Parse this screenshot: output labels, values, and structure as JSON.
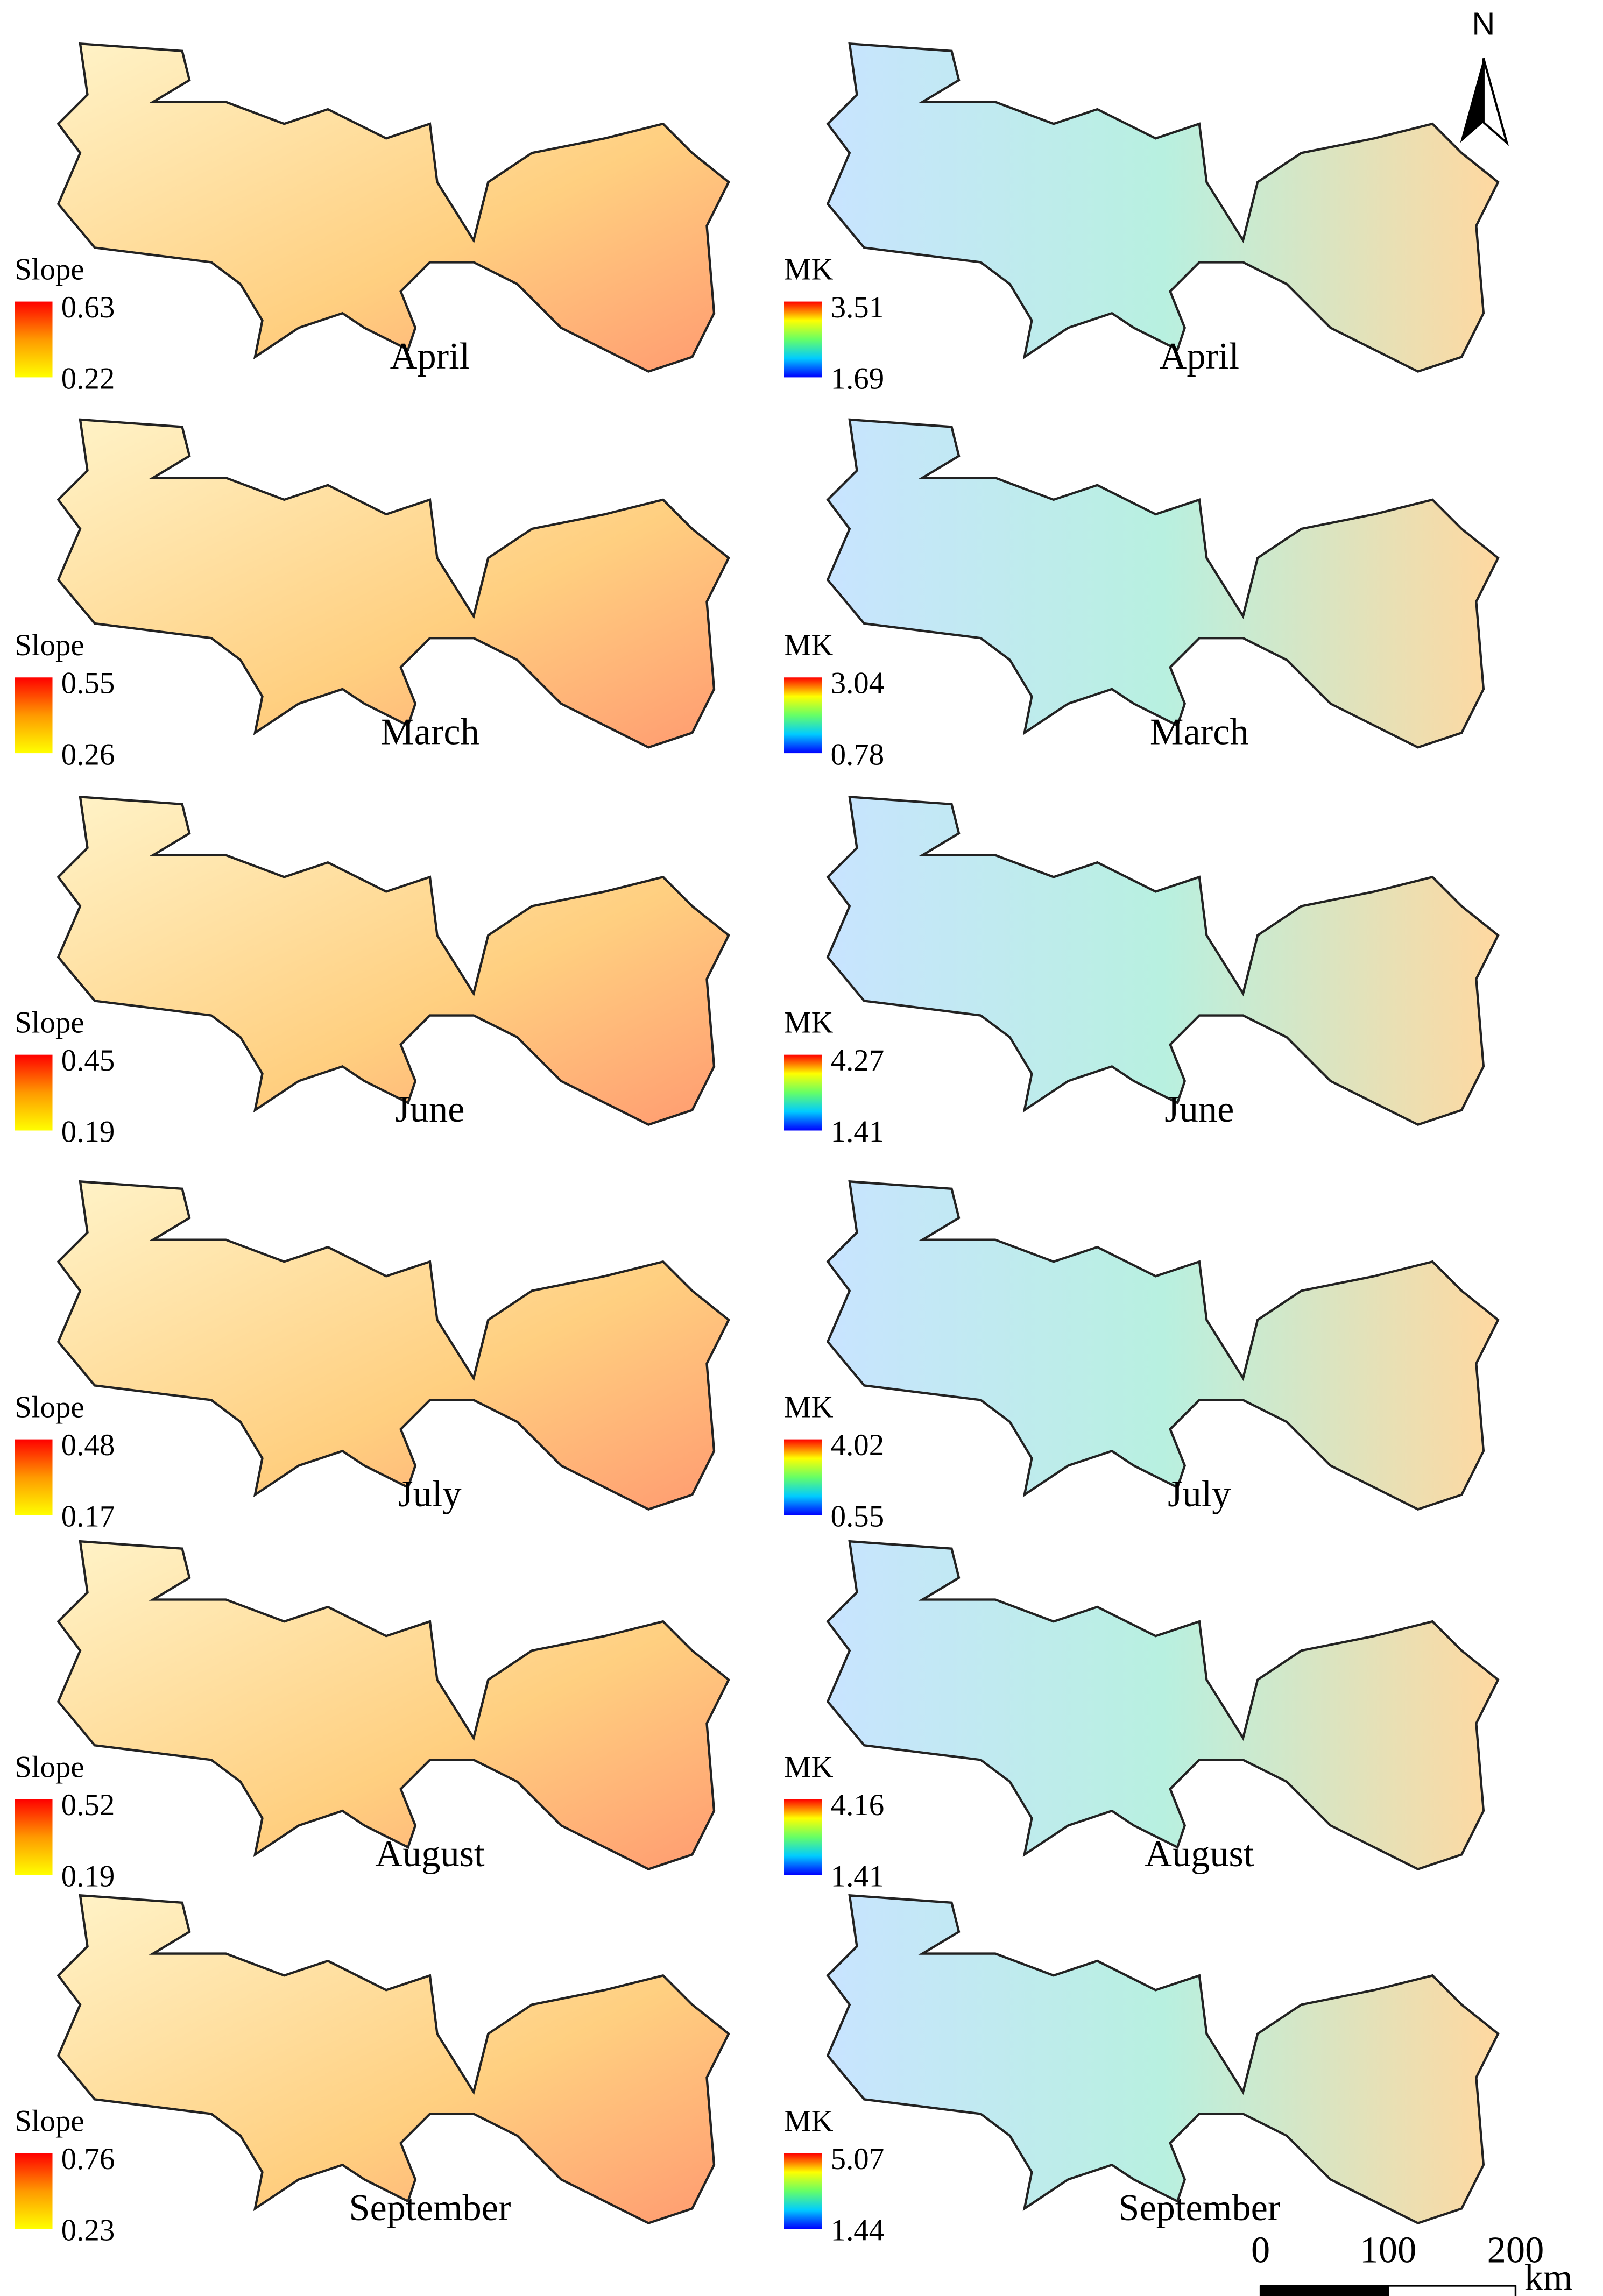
{
  "rows": [
    {
      "left": {
        "label": "April",
        "legend_title": "Slope",
        "max": 0.63,
        "min": 0.22
      },
      "right": {
        "label": "April",
        "legend_title": "MK",
        "max": 3.51,
        "min": 1.69
      }
    },
    {
      "left": {
        "label": "March",
        "legend_title": "Slope",
        "max": 0.55,
        "min": 0.26
      },
      "right": {
        "label": "March",
        "legend_title": "MK",
        "max": 3.04,
        "min": 0.78
      }
    },
    {
      "left": {
        "label": "June",
        "legend_title": "Slope",
        "max": 0.45,
        "min": 0.19
      },
      "right": {
        "label": "June",
        "legend_title": "MK",
        "max": 4.27,
        "min": 1.41
      }
    },
    {
      "left": {
        "label": "July",
        "legend_title": "Slope",
        "max": 0.48,
        "min": 0.17
      },
      "right": {
        "label": "July",
        "legend_title": "MK",
        "max": 4.02,
        "min": 0.55
      }
    },
    {
      "left": {
        "label": "August",
        "legend_title": "Slope",
        "max": 0.52,
        "min": 0.19
      },
      "right": {
        "label": "August",
        "legend_title": "MK",
        "max": 4.16,
        "min": 1.41
      }
    },
    {
      "left": {
        "label": "September",
        "legend_title": "Slope",
        "max": 0.76,
        "min": 0.23
      },
      "right": {
        "label": "September",
        "legend_title": "MK",
        "max": 5.07,
        "min": 1.44
      }
    }
  ],
  "north": "N",
  "scale_bar": {
    "ticks": [
      0,
      100,
      200
    ],
    "unit": "km"
  }
}
